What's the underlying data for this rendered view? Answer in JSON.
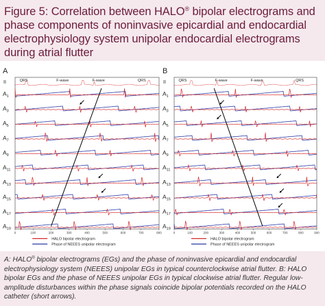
{
  "figure": {
    "title_pre": "Figure 5: Correlation between HALO",
    "title_reg": "®",
    "title_post": " bipolar electrograms and phase components of noninvasive epicardial and endocardial electrophysiology system unipolar endocardial electrograms during atrial flutter"
  },
  "panels": [
    {
      "letter": "A",
      "ecg_label": "II",
      "wave_labels": [
        "QRS",
        "F-wave",
        "F-wave",
        "QRS"
      ],
      "x_ticks": [
        "0",
        "100",
        "200",
        "300",
        "400",
        "500",
        "600",
        "700",
        "800"
      ],
      "channels": [
        "A1",
        "A3",
        "A5",
        "A7",
        "A9",
        "A11",
        "A13",
        "A15",
        "A17",
        "A19"
      ],
      "legend": [
        {
          "label": "HALO bipolar electrogram",
          "color": "#d62728"
        },
        {
          "label": "Phase of NEEES unipolar electrogram",
          "color": "#2b3da8"
        }
      ]
    },
    {
      "letter": "B",
      "ecg_label": "II",
      "wave_labels": [
        "QRS",
        "F-wave",
        "F-wave",
        "QRS"
      ],
      "x_ticks": [
        "0",
        "100",
        "200",
        "300",
        "400",
        "500",
        "600",
        "700",
        "800",
        "900"
      ],
      "channels": [
        "A1",
        "A3",
        "A5",
        "A7",
        "A9",
        "A11",
        "A13",
        "A15",
        "A17",
        "A19"
      ],
      "legend": [
        {
          "label": "HALO bipolar electrogram",
          "color": "#d62728"
        },
        {
          "label": "Phase of NEEES unipolar electrogram",
          "color": "#2b3da8"
        }
      ]
    }
  ],
  "caption": {
    "a_pre": "A: HALO",
    "reg": "®",
    "a_post": " bipolar electrograms (EGs) and the phase of noninvasive epicardial and endocardial electrophysiology system (NEEES) unipolar EGs in typical counterclockwise atrial flutter. B: HALO bipolar EGs and the phase of NEEES unipolar EGs in typical clockwise atrial flutter. Regular low-amplitude disturbances within the phase signals coincide bipolar potentials recorded on the HALO catheter (short arrows)."
  },
  "colors": {
    "title": "#6b1b3a",
    "band": "#f5e9ed",
    "bipolar": "#d62728",
    "phase": "#2b3da8"
  }
}
